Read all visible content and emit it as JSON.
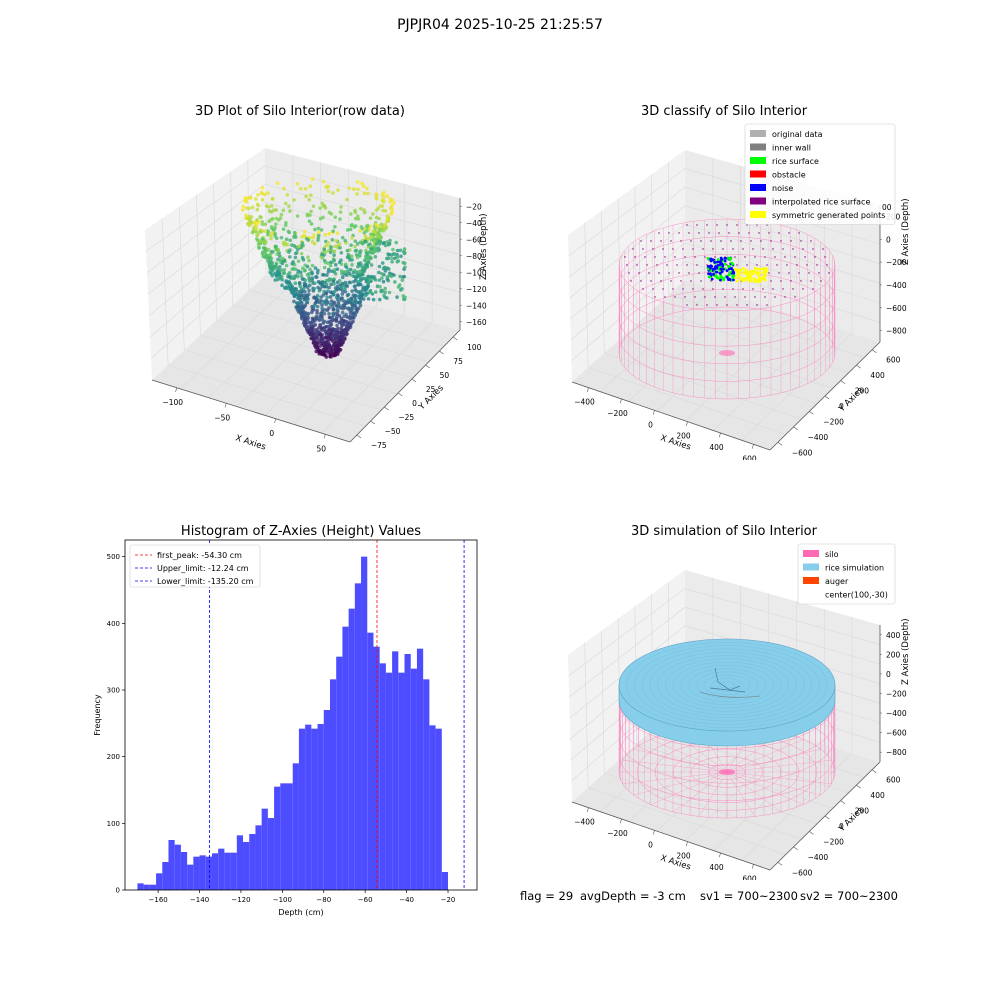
{
  "suptitle": "PJPJR04 2025-10-25 21:25:57",
  "panels": {
    "raw": {
      "title": "3D Plot of Silo Interior(row data)",
      "xlabel": "X Axies",
      "ylabel": "Y Axies",
      "zlabel": "Z Axies (Depth)",
      "xticks": [
        "−100",
        "−50",
        "0",
        "50"
      ],
      "yticks": [
        "−75",
        "−50",
        "−25",
        "0",
        "25",
        "50",
        "75",
        "100"
      ],
      "zticks": [
        "−20",
        "−40",
        "−60",
        "−80",
        "−100",
        "−120",
        "−140",
        "−160"
      ]
    },
    "classify": {
      "title": "3D classify of Silo Interior",
      "xlabel": "X Axies",
      "ylabel": "Y Axies",
      "zlabel": "Z Axies (Depth)",
      "xticks": [
        "−400",
        "−200",
        "0",
        "200",
        "400",
        "600"
      ],
      "yticks": [
        "−600",
        "−400",
        "−200",
        "0",
        "200",
        "400",
        "600"
      ],
      "zticks": [
        "200",
        "0",
        "−200",
        "−400",
        "−600",
        "−800"
      ],
      "zticks_partial": "00",
      "legend": [
        {
          "label": "original data",
          "color": "#b0b0b0"
        },
        {
          "label": "inner wall",
          "color": "#808080"
        },
        {
          "label": "rice surface",
          "color": "#00ff00"
        },
        {
          "label": "obstacle",
          "color": "#ff0000"
        },
        {
          "label": "noise",
          "color": "#0000ff"
        },
        {
          "label": "interpolated rice surface",
          "color": "#800080"
        },
        {
          "label": "symmetric generated points",
          "color": "#ffff00"
        }
      ]
    },
    "simulation": {
      "title": "3D simulation of Silo Interior",
      "xlabel": "X Axies",
      "ylabel": "Y Axies",
      "zlabel": "Z Axies (Depth)",
      "xticks": [
        "−400",
        "−200",
        "0",
        "200",
        "400",
        "600"
      ],
      "yticks": [
        "−600",
        "−400",
        "−200",
        "0",
        "200",
        "400",
        "600"
      ],
      "zticks": [
        "400",
        "200",
        "0",
        "−200",
        "−400",
        "−600",
        "−800"
      ],
      "legend": [
        {
          "label": "silo",
          "color": "#ff69b4"
        },
        {
          "label": "rice simulation",
          "color": "#87ceeb"
        },
        {
          "label": "auger",
          "color": "#ff4500"
        },
        {
          "label": "center(100,-30)",
          "color": ""
        }
      ]
    }
  },
  "status": {
    "flag": "flag = 29",
    "avg_depth": "avgDepth = -3 cm",
    "sv1": "sv1 = 700~2300",
    "sv2": "sv2 = 700~2300"
  },
  "chart_data": [
    {
      "type": "scatter",
      "title": "3D Plot of Silo Interior(row data)",
      "xlabel": "X Axies",
      "ylabel": "Y Axies",
      "zlabel": "Z Axies (Depth)",
      "xlim": [
        -140,
        90
      ],
      "ylim": [
        -80,
        110
      ],
      "zlim": [
        -175,
        -10
      ],
      "colormap": "viridis"
    },
    {
      "type": "scatter",
      "title": "3D classify of Silo Interior",
      "xlabel": "X Axies",
      "ylabel": "Y Axies",
      "zlabel": "Z Axies (Depth)",
      "xlim": [
        -500,
        700
      ],
      "ylim": [
        -700,
        700
      ],
      "zlim": [
        -900,
        300
      ],
      "series": [
        "original data",
        "inner wall",
        "rice surface",
        "obstacle",
        "noise",
        "interpolated rice surface",
        "symmetric generated points"
      ]
    },
    {
      "type": "bar",
      "title": "Histogram of Z-Axies (Height) Values",
      "xlabel": "Depth (cm)",
      "ylabel": "Frequency",
      "xlim": [
        -176,
        -6
      ],
      "ylim": [
        0,
        525
      ],
      "bin_start": -170,
      "bin_width": 3,
      "values": [
        10,
        8,
        8,
        25,
        42,
        75,
        68,
        57,
        38,
        50,
        52,
        50,
        55,
        62,
        56,
        56,
        82,
        72,
        84,
        97,
        122,
        108,
        155,
        160,
        160,
        190,
        242,
        248,
        242,
        249,
        270,
        316,
        350,
        395,
        422,
        460,
        500,
        386,
        365,
        340,
        326,
        358,
        326,
        354,
        332,
        362,
        316,
        247,
        242,
        27
      ],
      "vlines": [
        {
          "label": "first_peak: -54.30 cm",
          "x": -54.3,
          "color": "#ff0000"
        },
        {
          "label": "Upper_limit: -12.24 cm",
          "x": -12.24,
          "color": "#0000ff"
        },
        {
          "label": "Lower_limit: -135.20 cm",
          "x": -135.2,
          "color": "#0000ff"
        }
      ],
      "xticks": [
        -160,
        -140,
        -120,
        -100,
        -80,
        -60,
        -40,
        -20
      ],
      "yticks": [
        0,
        100,
        200,
        300,
        400,
        500
      ],
      "bar_color": "#4d4dff"
    },
    {
      "type": "area",
      "title": "3D simulation of Silo Interior",
      "xlabel": "X Axies",
      "ylabel": "Y Axies",
      "zlabel": "Z Axies (Depth)",
      "xlim": [
        -500,
        700
      ],
      "ylim": [
        -700,
        700
      ],
      "zlim": [
        -900,
        500
      ],
      "series": [
        "silo",
        "rice simulation",
        "auger",
        "center(100,-30)"
      ]
    }
  ]
}
